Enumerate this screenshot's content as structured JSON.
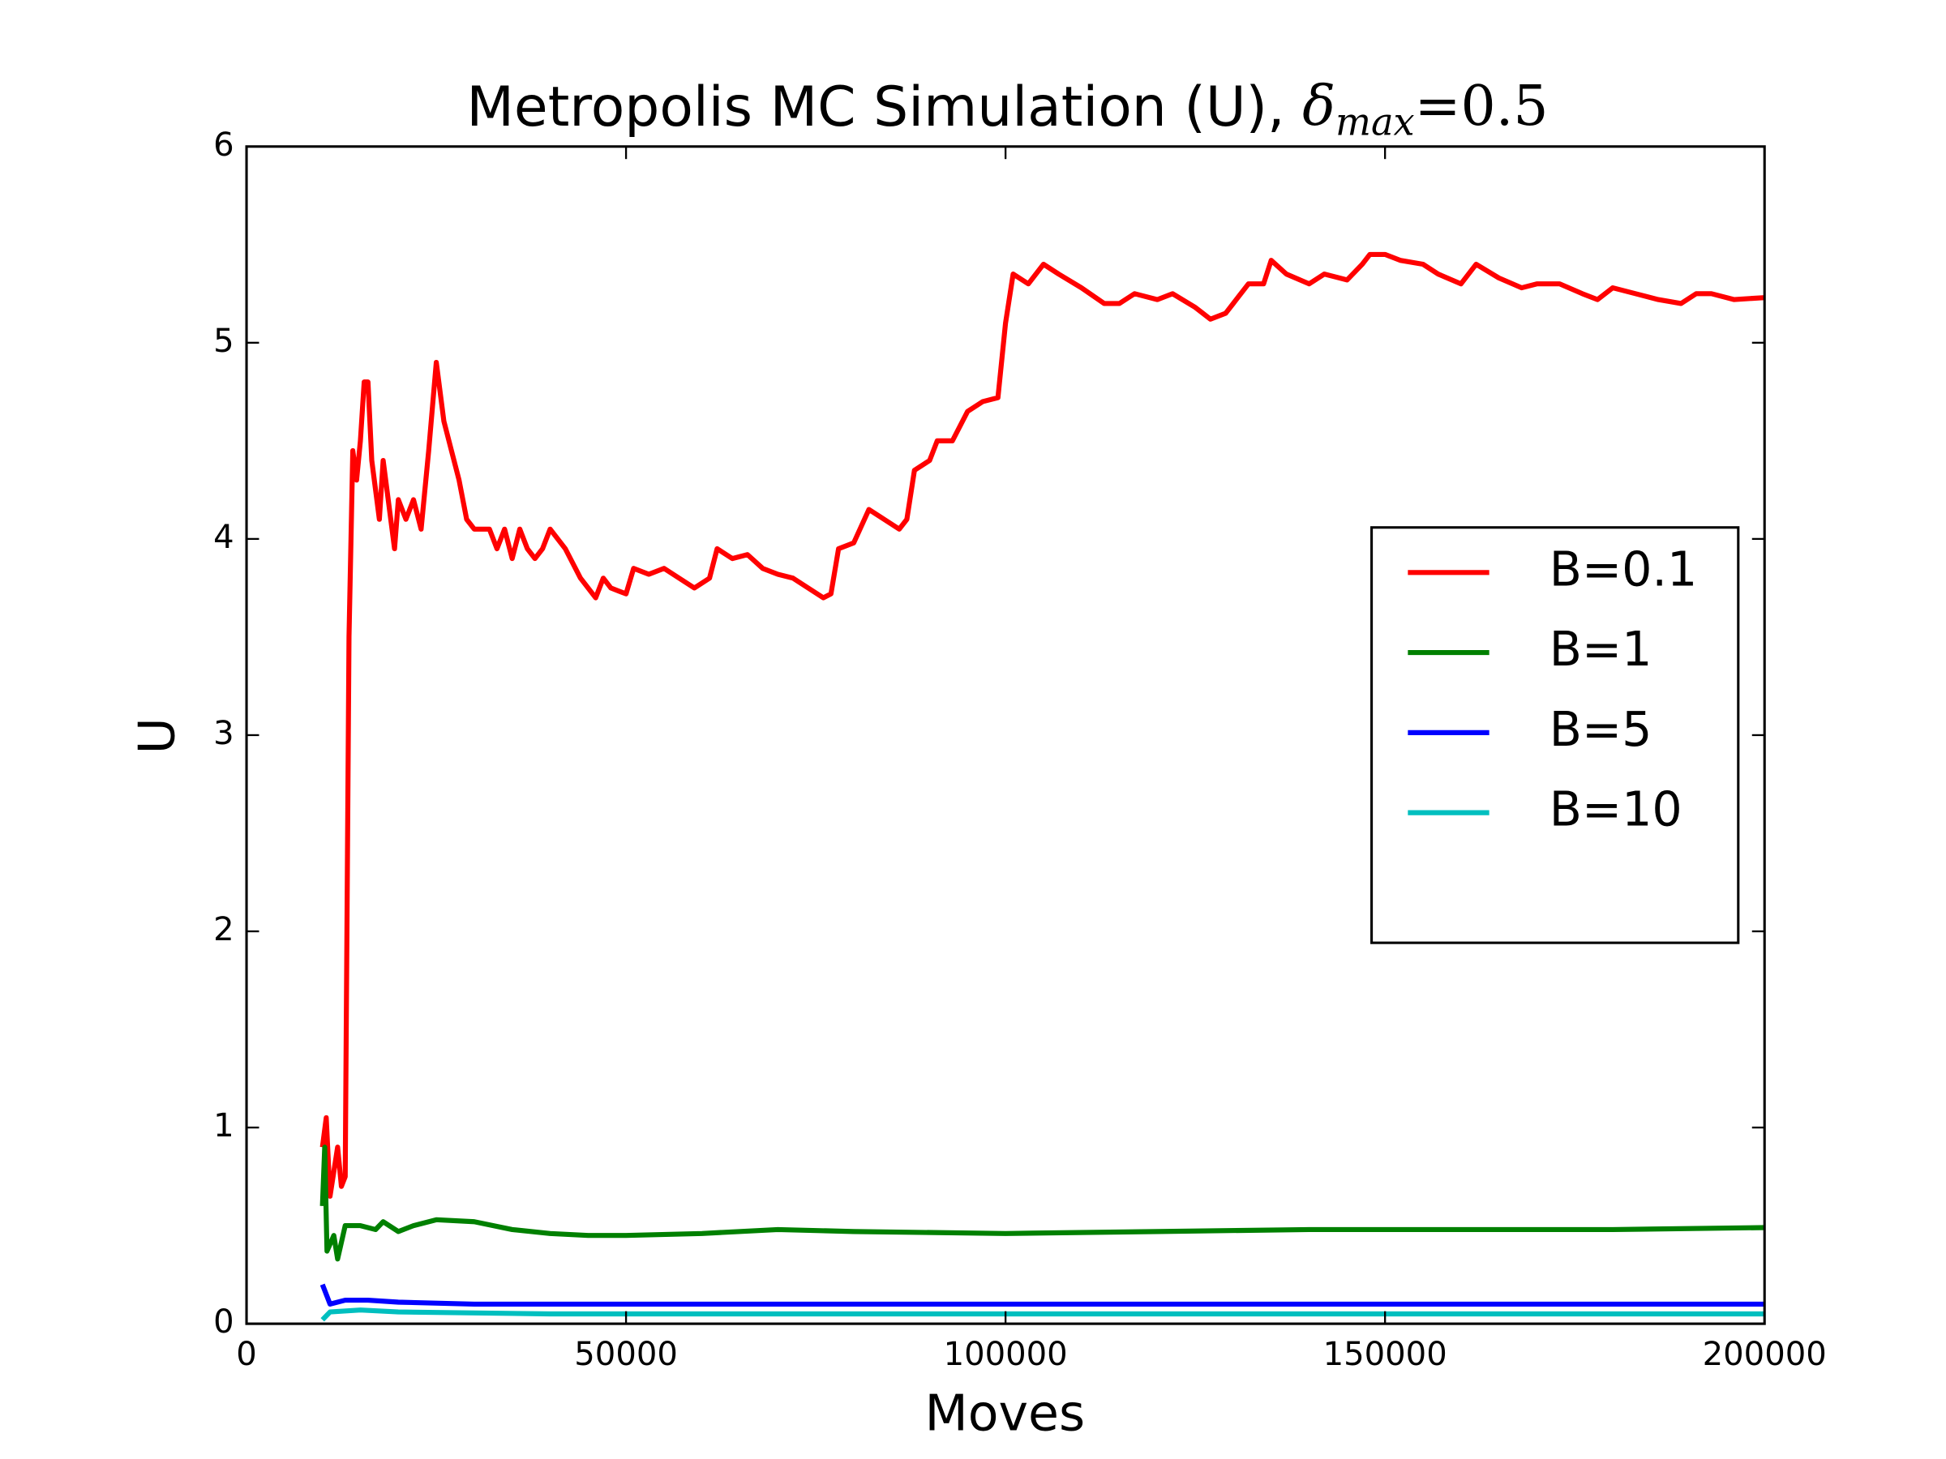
{
  "chart_data": {
    "type": "line",
    "title": "Metropolis MC Simulation (U), ",
    "title_math": "δ",
    "title_math_subscript": "max",
    "title_math_suffix": "=0.5",
    "x_label": "Moves",
    "y_label": "U",
    "xlim": [
      0,
      200000
    ],
    "ylim": [
      0,
      6
    ],
    "xticks": [
      0,
      50000,
      100000,
      150000,
      200000
    ],
    "yticks": [
      0,
      1,
      2,
      3,
      4,
      5,
      6
    ],
    "legend": "center right",
    "series": [
      {
        "name": "B=0.1",
        "color": "#ff0000",
        "x": [
          10000,
          10500,
          11000,
          12000,
          12500,
          13000,
          13500,
          14000,
          14500,
          15000,
          15500,
          16000,
          16500,
          17500,
          18000,
          19000,
          19500,
          20000,
          21000,
          22000,
          23000,
          24000,
          25000,
          26000,
          27000,
          28000,
          29000,
          30000,
          32000,
          33000,
          34000,
          35000,
          36000,
          37000,
          38000,
          39000,
          40000,
          42000,
          44000,
          46000,
          47000,
          48000,
          50000,
          51000,
          53000,
          55000,
          57000,
          59000,
          61000,
          62000,
          64000,
          66000,
          68000,
          70000,
          72000,
          74000,
          76000,
          77000,
          78000,
          80000,
          82000,
          84000,
          86000,
          87000,
          88000,
          90000,
          91000,
          93000,
          95000,
          97000,
          99000,
          100000,
          101000,
          103000,
          105000,
          107000,
          110000,
          113000,
          115000,
          117000,
          120000,
          122000,
          125000,
          127000,
          129000,
          130000,
          132000,
          134000,
          135000,
          137000,
          140000,
          142000,
          145000,
          147000,
          148000,
          150000,
          152000,
          155000,
          157000,
          160000,
          162000,
          165000,
          168000,
          170000,
          173000,
          176000,
          178000,
          180000,
          183000,
          186000,
          189000,
          191000,
          193000,
          196000,
          200000
        ],
        "values": [
          0.9,
          1.05,
          0.65,
          0.9,
          0.7,
          0.75,
          3.5,
          4.45,
          4.3,
          4.5,
          4.8,
          4.8,
          4.4,
          4.1,
          4.4,
          4.1,
          3.95,
          4.2,
          4.1,
          4.2,
          4.05,
          4.45,
          4.9,
          4.6,
          4.45,
          4.3,
          4.1,
          4.05,
          4.05,
          3.95,
          4.05,
          3.9,
          4.05,
          3.95,
          3.9,
          3.95,
          4.05,
          3.95,
          3.8,
          3.7,
          3.8,
          3.75,
          3.72,
          3.85,
          3.82,
          3.85,
          3.8,
          3.75,
          3.8,
          3.95,
          3.9,
          3.92,
          3.85,
          3.82,
          3.8,
          3.75,
          3.7,
          3.72,
          3.95,
          3.98,
          4.15,
          4.1,
          4.05,
          4.1,
          4.35,
          4.4,
          4.5,
          4.5,
          4.65,
          4.7,
          4.72,
          5.1,
          5.35,
          5.3,
          5.4,
          5.35,
          5.28,
          5.2,
          5.2,
          5.25,
          5.22,
          5.25,
          5.18,
          5.12,
          5.15,
          5.2,
          5.3,
          5.3,
          5.42,
          5.35,
          5.3,
          5.35,
          5.32,
          5.4,
          5.45,
          5.45,
          5.42,
          5.4,
          5.35,
          5.3,
          5.4,
          5.33,
          5.28,
          5.3,
          5.3,
          5.25,
          5.22,
          5.28,
          5.25,
          5.22,
          5.2,
          5.25,
          5.25,
          5.22,
          5.23
        ]
      },
      {
        "name": "B=1",
        "color": "#008000",
        "x": [
          10000,
          10300,
          10600,
          11500,
          12000,
          13000,
          15000,
          17000,
          18000,
          20000,
          22000,
          25000,
          30000,
          35000,
          40000,
          45000,
          50000,
          60000,
          70000,
          80000,
          100000,
          120000,
          140000,
          160000,
          180000,
          200000
        ],
        "values": [
          0.6,
          0.9,
          0.37,
          0.45,
          0.33,
          0.5,
          0.5,
          0.48,
          0.52,
          0.47,
          0.5,
          0.53,
          0.52,
          0.48,
          0.46,
          0.45,
          0.45,
          0.46,
          0.48,
          0.47,
          0.46,
          0.47,
          0.48,
          0.48,
          0.48,
          0.49
        ]
      },
      {
        "name": "B=5",
        "color": "#0000ff",
        "x": [
          10000,
          11000,
          13000,
          16000,
          20000,
          30000,
          50000,
          100000,
          200000
        ],
        "values": [
          0.2,
          0.1,
          0.12,
          0.12,
          0.11,
          0.1,
          0.1,
          0.1,
          0.1
        ]
      },
      {
        "name": "B=10",
        "color": "#00bfbf",
        "x": [
          10000,
          11000,
          15000,
          20000,
          40000,
          100000,
          200000
        ],
        "values": [
          0.02,
          0.06,
          0.07,
          0.06,
          0.05,
          0.05,
          0.05
        ]
      }
    ]
  }
}
